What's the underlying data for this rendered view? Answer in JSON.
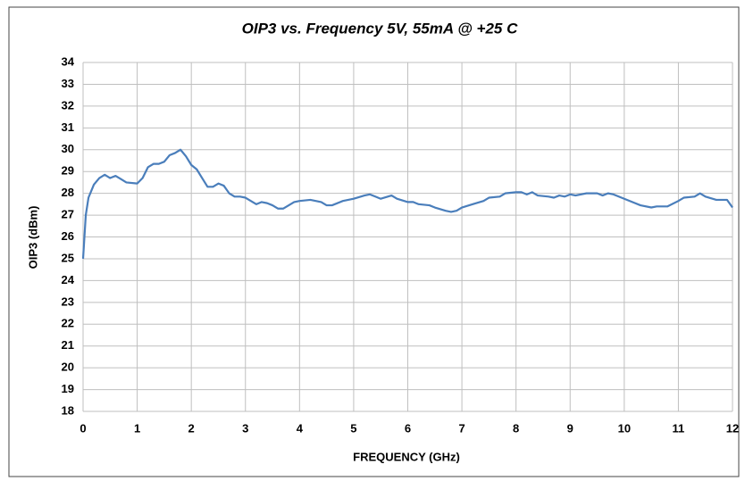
{
  "chart_data": {
    "type": "line",
    "title": "OIP3 vs. Frequency  5V, 55mA @ +25 C",
    "xlabel": "FREQUENCY (GHz)",
    "ylabel": "OIP3 (dBm)",
    "x": [
      0,
      0.05,
      0.1,
      0.2,
      0.3,
      0.4,
      0.5,
      0.6,
      0.7,
      0.8,
      1.0,
      1.1,
      1.2,
      1.3,
      1.4,
      1.5,
      1.6,
      1.7,
      1.8,
      1.9,
      2.0,
      2.1,
      2.2,
      2.3,
      2.4,
      2.5,
      2.6,
      2.7,
      2.8,
      2.9,
      3.0,
      3.1,
      3.2,
      3.3,
      3.4,
      3.5,
      3.6,
      3.7,
      3.8,
      3.9,
      4.0,
      4.2,
      4.4,
      4.5,
      4.6,
      4.8,
      5.0,
      5.2,
      5.3,
      5.4,
      5.5,
      5.7,
      5.8,
      6.0,
      6.1,
      6.2,
      6.4,
      6.5,
      6.7,
      6.8,
      6.9,
      7.0,
      7.2,
      7.4,
      7.5,
      7.7,
      7.8,
      8.0,
      8.1,
      8.2,
      8.3,
      8.4,
      8.6,
      8.7,
      8.8,
      8.9,
      9.0,
      9.1,
      9.3,
      9.5,
      9.6,
      9.7,
      9.8,
      10.0,
      10.2,
      10.3,
      10.5,
      10.6,
      10.8,
      11.0,
      11.1,
      11.3,
      11.4,
      11.5,
      11.7,
      11.9,
      12.0
    ],
    "values": [
      25,
      27,
      27.8,
      28.4,
      28.7,
      28.85,
      28.7,
      28.8,
      28.65,
      28.5,
      28.45,
      28.7,
      29.2,
      29.35,
      29.35,
      29.45,
      29.75,
      29.85,
      30.0,
      29.7,
      29.3,
      29.1,
      28.7,
      28.3,
      28.3,
      28.45,
      28.35,
      28.0,
      27.85,
      27.85,
      27.8,
      27.65,
      27.5,
      27.6,
      27.55,
      27.45,
      27.3,
      27.3,
      27.45,
      27.6,
      27.65,
      27.7,
      27.6,
      27.45,
      27.45,
      27.65,
      27.75,
      27.9,
      27.95,
      27.85,
      27.75,
      27.9,
      27.75,
      27.6,
      27.6,
      27.5,
      27.45,
      27.35,
      27.2,
      27.15,
      27.2,
      27.35,
      27.5,
      27.65,
      27.8,
      27.85,
      28.0,
      28.05,
      28.05,
      27.95,
      28.05,
      27.9,
      27.85,
      27.8,
      27.9,
      27.85,
      27.95,
      27.9,
      28.0,
      28.0,
      27.9,
      28.0,
      27.95,
      27.75,
      27.55,
      27.45,
      27.35,
      27.4,
      27.4,
      27.65,
      27.8,
      27.85,
      28.0,
      27.85,
      27.7,
      27.7,
      27.35
    ],
    "color": "#4a7ebb",
    "xlim": [
      0,
      12
    ],
    "xticks": [
      0,
      1,
      2,
      3,
      4,
      5,
      6,
      7,
      8,
      9,
      10,
      11,
      12
    ],
    "ylim": [
      18,
      34
    ],
    "yticks": [
      18,
      19,
      20,
      21,
      22,
      23,
      24,
      25,
      26,
      27,
      28,
      29,
      30,
      31,
      32,
      33,
      34
    ],
    "grid": true
  }
}
